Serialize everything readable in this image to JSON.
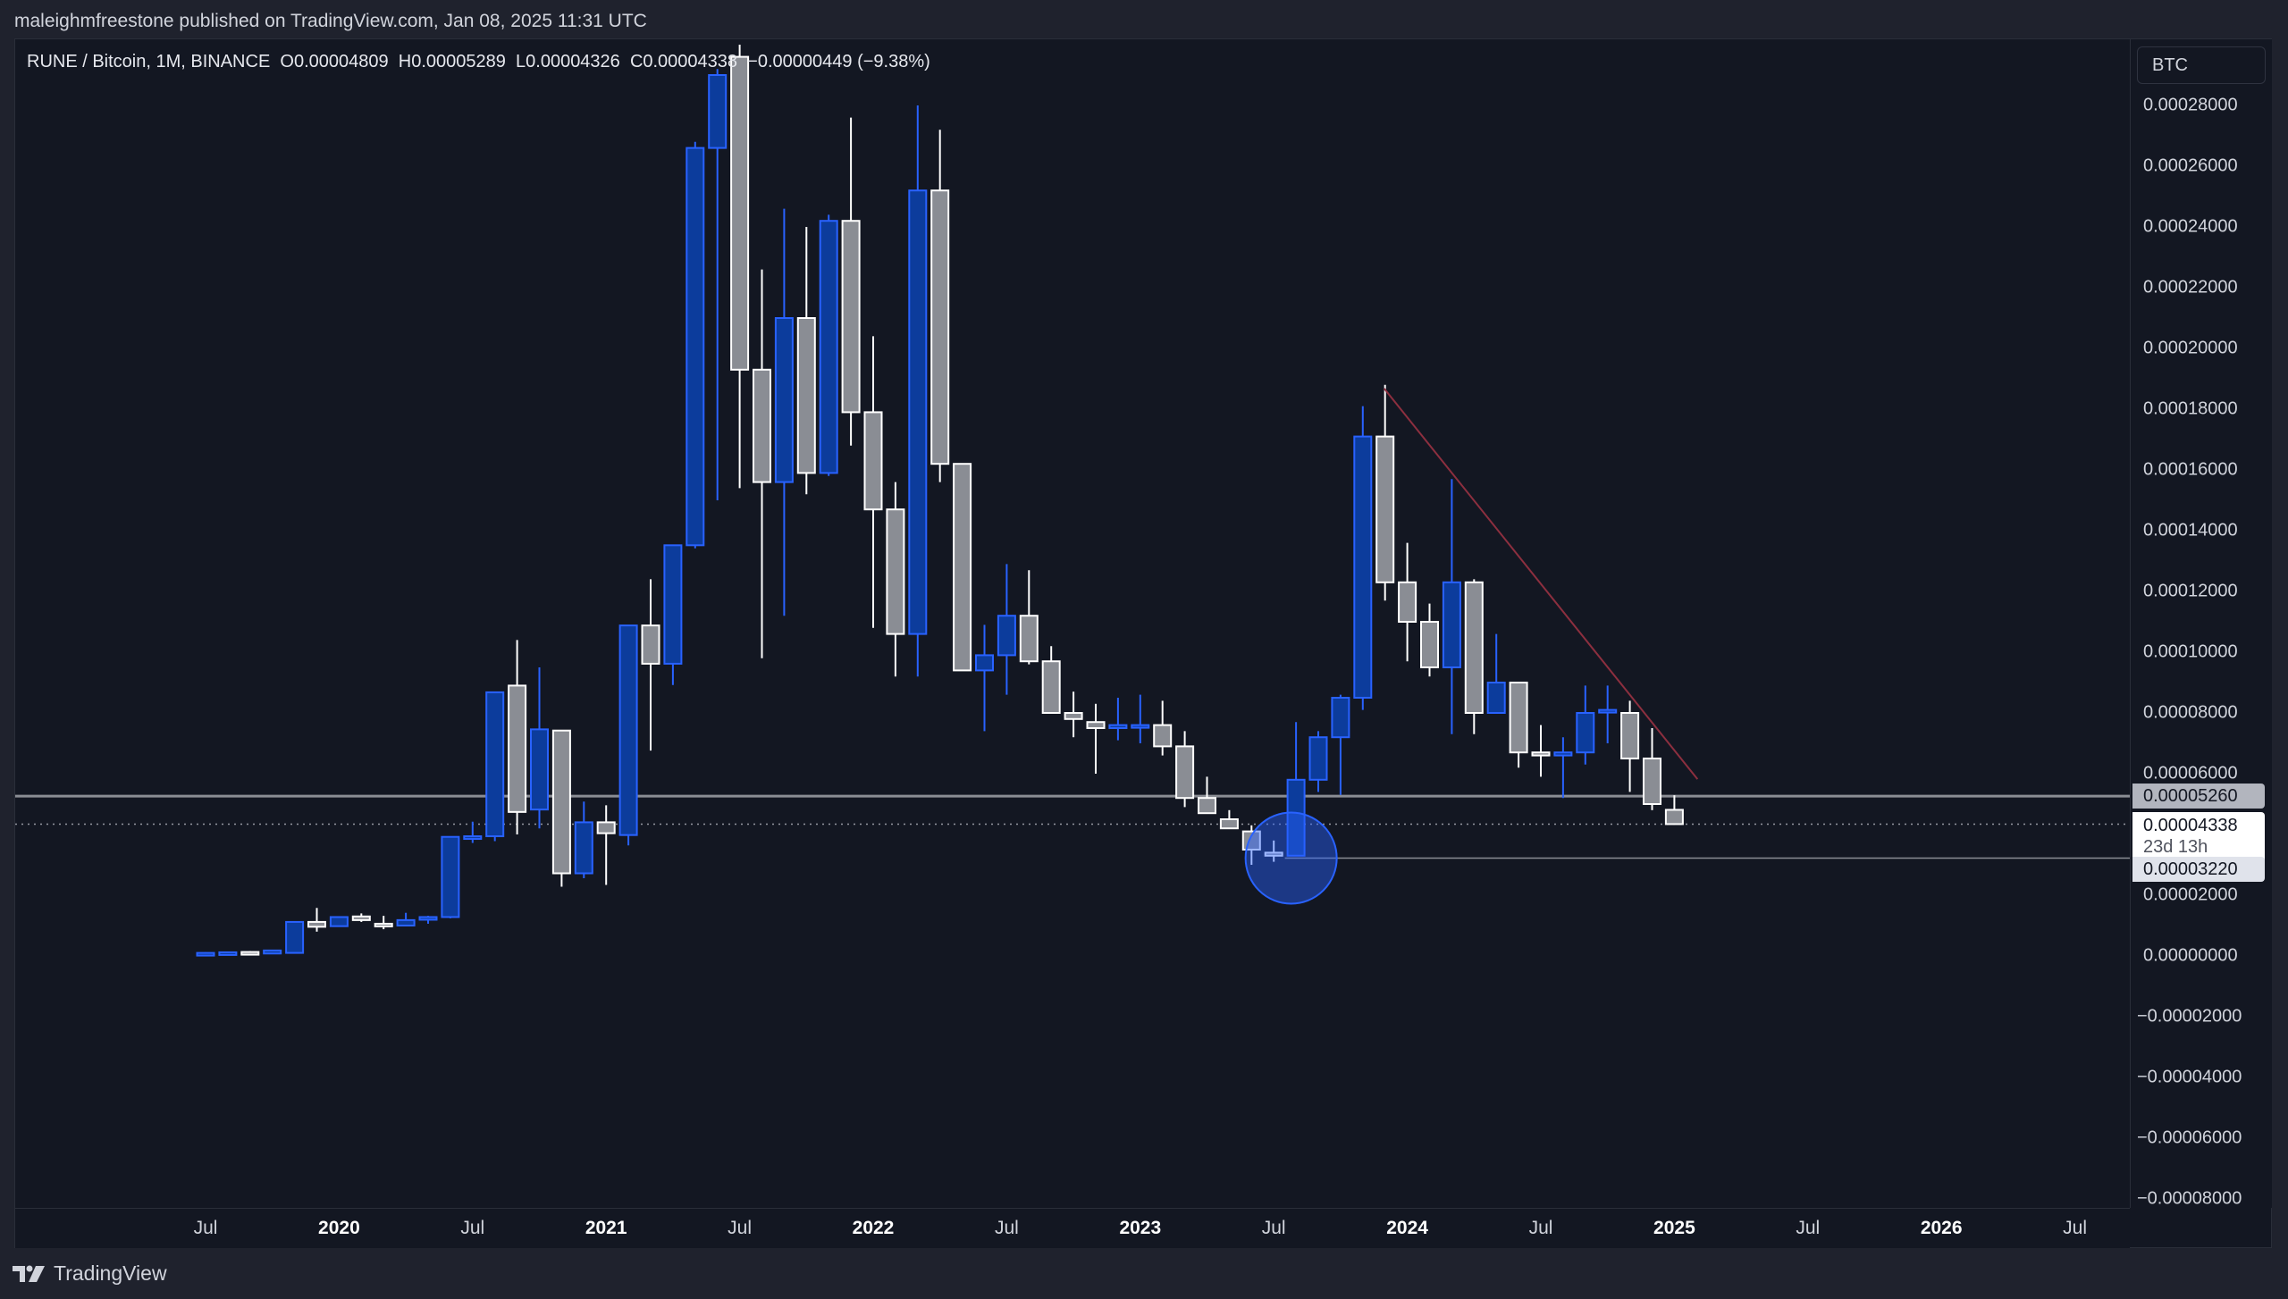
{
  "header": {
    "published_by": "maleighmfreestone published on TradingView.com, Jan 08, 2025 11:31 UTC"
  },
  "legend": {
    "symbol": "RUNE / Bitcoin, 1M, BINANCE",
    "open": "O0.00004809",
    "high": "H0.00005289",
    "low": "L0.00004326",
    "close": "C0.00004338",
    "change": "−0.00000449 (−9.38%)"
  },
  "price_axis": {
    "currency": "BTC",
    "ticks": [
      "0.00028000",
      "0.00026000",
      "0.00024000",
      "0.00022000",
      "0.00020000",
      "0.00018000",
      "0.00016000",
      "0.00014000",
      "0.00012000",
      "0.00010000",
      "0.00008000",
      "0.00006000",
      "0.00002000",
      "0.00000000",
      "−0.00002000",
      "−0.00004000",
      "−0.00006000",
      "−0.00008000"
    ],
    "badges": {
      "level_upper": "0.00005260",
      "last_price": "0.00004338",
      "countdown": "23d 13h",
      "level_lower": "0.00003220"
    }
  },
  "time_axis": {
    "labels": [
      {
        "text": "Jul",
        "year": false
      },
      {
        "text": "2020",
        "year": true
      },
      {
        "text": "Jul",
        "year": false
      },
      {
        "text": "2021",
        "year": true
      },
      {
        "text": "Jul",
        "year": false
      },
      {
        "text": "2022",
        "year": true
      },
      {
        "text": "Jul",
        "year": false
      },
      {
        "text": "2023",
        "year": true
      },
      {
        "text": "Jul",
        "year": false
      },
      {
        "text": "2024",
        "year": true
      },
      {
        "text": "Jul",
        "year": false
      },
      {
        "text": "2025",
        "year": true
      },
      {
        "text": "Jul",
        "year": false
      },
      {
        "text": "2026",
        "year": true
      },
      {
        "text": "Jul",
        "year": false
      }
    ]
  },
  "footer": {
    "brand": "TradingView"
  },
  "colors": {
    "up_fill": "#0c3c9c",
    "up_border": "#2962ff",
    "down_fill": "#8a8d94",
    "down_border": "#ffffff",
    "trendline": "#8c2f3f",
    "level_line": "#8a8d94",
    "highlight_circle": "#2962ff"
  },
  "chart_data": {
    "type": "candlestick",
    "title": "RUNE / Bitcoin, 1M, BINANCE",
    "xlabel": "",
    "ylabel": "BTC",
    "ylim": [
      -8e-05,
      0.00028
    ],
    "grid": false,
    "start_month": "2019-07",
    "interval": "1M",
    "candles": [
      {
        "o": 1e-06,
        "h": 1.2e-06,
        "l": 6e-07,
        "c": 1e-06
      },
      {
        "o": 8e-07,
        "h": 1.2e-06,
        "l": 8e-07,
        "c": 1.2e-06
      },
      {
        "o": 1.3e-06,
        "h": 1.6e-06,
        "l": 8e-07,
        "c": 8e-07
      },
      {
        "o": 8e-07,
        "h": 2e-06,
        "l": 8e-07,
        "c": 1.8e-06
      },
      {
        "o": 1e-06,
        "h": 1.12e-05,
        "l": 1e-06,
        "c": 1.12e-05
      },
      {
        "o": 1.12e-05,
        "h": 1.58e-05,
        "l": 8e-06,
        "c": 9.6e-06
      },
      {
        "o": 9.8e-06,
        "h": 1.3e-05,
        "l": 9.8e-06,
        "c": 1.28e-05
      },
      {
        "o": 1.3e-05,
        "h": 1.4e-05,
        "l": 1.12e-05,
        "c": 1.18e-05
      },
      {
        "o": 1.06e-05,
        "h": 1.32e-05,
        "l": 8.8e-06,
        "c": 9.8e-06
      },
      {
        "o": 1e-05,
        "h": 1.42e-05,
        "l": 1e-05,
        "c": 1.18e-05
      },
      {
        "o": 1.22e-05,
        "h": 1.32e-05,
        "l": 1.06e-05,
        "c": 1.28e-05
      },
      {
        "o": 1.28e-05,
        "h": 3.92e-05,
        "l": 1.24e-05,
        "c": 3.92e-05
      },
      {
        "o": 3.92e-05,
        "h": 4.42e-05,
        "l": 3.72e-05,
        "c": 3.94e-05
      },
      {
        "o": 3.94e-05,
        "h": 8.68e-05,
        "l": 3.78e-05,
        "c": 8.68e-05
      },
      {
        "o": 8.9e-05,
        "h": 0.000104,
        "l": 4e-05,
        "c": 4.74e-05
      },
      {
        "o": 4.82e-05,
        "h": 9.5e-05,
        "l": 4.2e-05,
        "c": 7.46e-05
      },
      {
        "o": 7.42e-05,
        "h": 7.22e-05,
        "l": 2.28e-05,
        "c": 2.72e-05
      },
      {
        "o": 2.72e-05,
        "h": 5.08e-05,
        "l": 2.56e-05,
        "c": 4.4e-05
      },
      {
        "o": 4.4e-05,
        "h": 4.96e-05,
        "l": 2.34e-05,
        "c": 4.04e-05
      },
      {
        "o": 3.98e-05,
        "h": 0.0001078,
        "l": 3.64e-05,
        "c": 0.0001088
      },
      {
        "o": 0.0001088,
        "h": 0.000124,
        "l": 6.76e-05,
        "c": 9.62e-05
      },
      {
        "o": 9.62e-05,
        "h": 0.000135,
        "l": 8.92e-05,
        "c": 0.0001352
      },
      {
        "o": 0.0001352,
        "h": 0.000268,
        "l": 0.0001342,
        "c": 0.000266
      },
      {
        "o": 0.000266,
        "h": 0.000292,
        "l": 0.00015,
        "c": 0.00029
      },
      {
        "o": 0.000296,
        "h": 0.0003,
        "l": 0.000154,
        "c": 0.000193
      },
      {
        "o": 0.000193,
        "h": 0.000226,
        "l": 9.8e-05,
        "c": 0.000156
      },
      {
        "o": 0.000156,
        "h": 0.000246,
        "l": 0.000112,
        "c": 0.00021
      },
      {
        "o": 0.00021,
        "h": 0.00024,
        "l": 0.000152,
        "c": 0.000159
      },
      {
        "o": 0.000159,
        "h": 0.000244,
        "l": 0.000158,
        "c": 0.000242
      },
      {
        "o": 0.000242,
        "h": 0.000276,
        "l": 0.000168,
        "c": 0.000179
      },
      {
        "o": 0.000179,
        "h": 0.000204,
        "l": 0.000108,
        "c": 0.000147
      },
      {
        "o": 0.000147,
        "h": 0.000156,
        "l": 9.2e-05,
        "c": 0.000106
      },
      {
        "o": 0.000106,
        "h": 0.00028,
        "l": 9.2e-05,
        "c": 0.000252
      },
      {
        "o": 0.000252,
        "h": 0.000272,
        "l": 0.000156,
        "c": 0.000162
      },
      {
        "o": 0.000162,
        "h": 0.000162,
        "l": 9.4e-05,
        "c": 9.4e-05
      },
      {
        "o": 9.4e-05,
        "h": 0.000109,
        "l": 7.4e-05,
        "c": 9.9e-05
      },
      {
        "o": 9.9e-05,
        "h": 0.000129,
        "l": 8.6e-05,
        "c": 0.000112
      },
      {
        "o": 0.000112,
        "h": 0.000127,
        "l": 9.6e-05,
        "c": 9.7e-05
      },
      {
        "o": 9.7e-05,
        "h": 0.000102,
        "l": 8e-05,
        "c": 8e-05
      },
      {
        "o": 8e-05,
        "h": 8.7e-05,
        "l": 7.2e-05,
        "c": 7.8e-05
      },
      {
        "o": 7.7e-05,
        "h": 8.3e-05,
        "l": 6e-05,
        "c": 7.5e-05
      },
      {
        "o": 7.5e-05,
        "h": 8.5e-05,
        "l": 7.1e-05,
        "c": 7.6e-05
      },
      {
        "o": 7.6e-05,
        "h": 8.6e-05,
        "l": 7e-05,
        "c": 7.6e-05
      },
      {
        "o": 7.6e-05,
        "h": 8.4e-05,
        "l": 6.6e-05,
        "c": 6.9e-05
      },
      {
        "o": 6.9e-05,
        "h": 7.4e-05,
        "l": 4.9e-05,
        "c": 5.2e-05
      },
      {
        "o": 5.2e-05,
        "h": 5.9e-05,
        "l": 4.9e-05,
        "c": 4.7e-05
      },
      {
        "o": 4.5e-05,
        "h": 4.8e-05,
        "l": 4.2e-05,
        "c": 4.2e-05
      },
      {
        "o": 4.1e-05,
        "h": 4.3e-05,
        "l": 3e-05,
        "c": 3.5e-05
      },
      {
        "o": 3.4e-05,
        "h": 3.8e-05,
        "l": 3.1e-05,
        "c": 3.3e-05
      },
      {
        "o": 3.3e-05,
        "h": 7.7e-05,
        "l": 3.3e-05,
        "c": 5.8e-05
      },
      {
        "o": 5.8e-05,
        "h": 7.4e-05,
        "l": 5.4e-05,
        "c": 7.2e-05
      },
      {
        "o": 7.2e-05,
        "h": 8.6e-05,
        "l": 5.3e-05,
        "c": 8.5e-05
      },
      {
        "o": 8.5e-05,
        "h": 0.000181,
        "l": 8.1e-05,
        "c": 0.000171
      },
      {
        "o": 0.000171,
        "h": 0.000188,
        "l": 0.000117,
        "c": 0.000123
      },
      {
        "o": 0.000123,
        "h": 0.000136,
        "l": 9.7e-05,
        "c": 0.00011
      },
      {
        "o": 0.00011,
        "h": 0.000116,
        "l": 9.2e-05,
        "c": 9.5e-05
      },
      {
        "o": 9.5e-05,
        "h": 0.000157,
        "l": 7.3e-05,
        "c": 0.000123
      },
      {
        "o": 0.000123,
        "h": 0.000124,
        "l": 7.3e-05,
        "c": 8e-05
      },
      {
        "o": 8e-05,
        "h": 0.000106,
        "l": 8e-05,
        "c": 9e-05
      },
      {
        "o": 9e-05,
        "h": 9e-05,
        "l": 6.2e-05,
        "c": 6.7e-05
      },
      {
        "o": 6.7e-05,
        "h": 7.6e-05,
        "l": 5.9e-05,
        "c": 6.6e-05
      },
      {
        "o": 6.6e-05,
        "h": 7.2e-05,
        "l": 5.2e-05,
        "c": 6.7e-05
      },
      {
        "o": 6.7e-05,
        "h": 8.9e-05,
        "l": 6.3e-05,
        "c": 8e-05
      },
      {
        "o": 8.1e-05,
        "h": 8.9e-05,
        "l": 7e-05,
        "c": 8.1e-05
      },
      {
        "o": 8e-05,
        "h": 8.4e-05,
        "l": 5.4e-05,
        "c": 6.5e-05
      },
      {
        "o": 6.5e-05,
        "h": 7.5e-05,
        "l": 4.8e-05,
        "c": 5e-05
      },
      {
        "o": 4.81e-05,
        "h": 5.29e-05,
        "l": 4.33e-05,
        "c": 4.34e-05
      }
    ],
    "annotations": {
      "horizontal_levels": [
        5.26e-05,
        3.22e-05
      ],
      "last_price": 4.338e-05,
      "trendline": {
        "from": {
          "month_index": 53,
          "price": 0.0001868
        },
        "to": {
          "month_index": 67,
          "price": 5.82e-05
        }
      },
      "highlight_circle": {
        "month_index": 48.5,
        "price": 3.22e-05
      }
    }
  }
}
